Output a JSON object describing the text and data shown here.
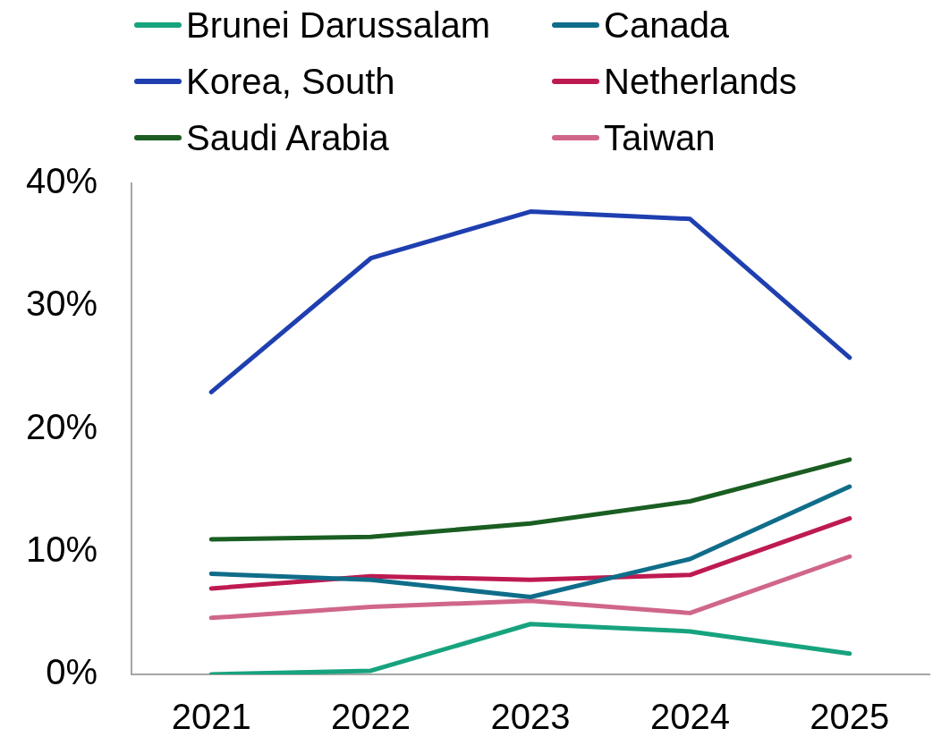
{
  "chart_data": {
    "type": "line",
    "categories": [
      "2021",
      "2022",
      "2023",
      "2024",
      "2025"
    ],
    "series": [
      {
        "name": "Brunei Darussalam",
        "color": "#17a37e",
        "values": [
          0.0,
          0.3,
          4.1,
          3.5,
          1.7
        ]
      },
      {
        "name": "Canada",
        "color": "#0f6d8a",
        "values": [
          8.2,
          7.7,
          6.3,
          9.4,
          15.3
        ]
      },
      {
        "name": "Korea, South",
        "color": "#1f3fb0",
        "values": [
          23.0,
          33.9,
          37.7,
          37.1,
          25.8
        ]
      },
      {
        "name": "Netherlands",
        "color": "#be1a52",
        "values": [
          7.0,
          8.0,
          7.7,
          8.1,
          12.7
        ]
      },
      {
        "name": "Saudi Arabia",
        "color": "#1a5e22",
        "values": [
          11.0,
          11.2,
          12.3,
          14.1,
          17.5
        ]
      },
      {
        "name": "Taiwan",
        "color": "#d0668a",
        "values": [
          4.6,
          5.5,
          6.0,
          5.0,
          9.6
        ]
      }
    ],
    "ylim": [
      0,
      40
    ],
    "yticks": [
      {
        "value": 0,
        "label": "0%"
      },
      {
        "value": 10,
        "label": "10%"
      },
      {
        "value": 20,
        "label": "20%"
      },
      {
        "value": 30,
        "label": "30%"
      },
      {
        "value": 40,
        "label": "40%"
      }
    ],
    "legend": "top",
    "marker": "none",
    "line_style": "solid"
  }
}
